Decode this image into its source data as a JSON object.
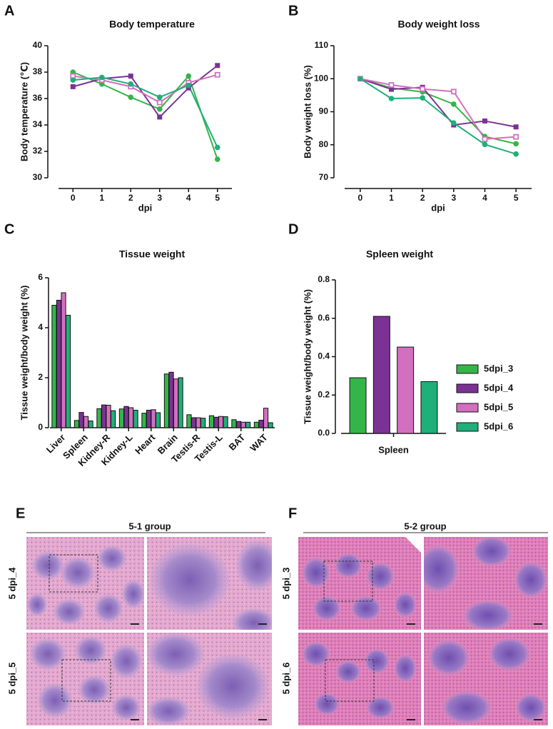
{
  "panel_labels": [
    "A",
    "B",
    "C",
    "D",
    "E",
    "F"
  ],
  "chart_data": [
    {
      "type": "line",
      "title": "Body temperature",
      "x_label": "dpi",
      "y_label": "Body temperature (℃)",
      "x": [
        0,
        1,
        2,
        3,
        4,
        5
      ],
      "xlim": [
        -0.5,
        5.5
      ],
      "xticks": [
        0,
        1,
        2,
        3,
        4,
        5
      ],
      "ylim": [
        30,
        40
      ],
      "yticks": [
        30,
        32,
        34,
        36,
        38,
        40
      ],
      "series": [
        {
          "name": "5dpi_3",
          "color": "#35b549",
          "marker": "circle",
          "values": [
            38.0,
            37.1,
            36.1,
            35.2,
            37.7,
            31.4
          ]
        },
        {
          "name": "5dpi_4",
          "color": "#7b3294",
          "marker": "square",
          "values": [
            36.9,
            37.5,
            37.7,
            34.6,
            36.8,
            38.5
          ]
        },
        {
          "name": "5dpi_5",
          "color": "#d36fbf",
          "marker": "open-square",
          "values": [
            37.7,
            37.4,
            36.9,
            35.7,
            37.2,
            37.8
          ]
        },
        {
          "name": "5dpi_6",
          "color": "#1faf78",
          "marker": "circle",
          "values": [
            37.4,
            37.6,
            37.1,
            36.1,
            37.0,
            32.3
          ]
        }
      ]
    },
    {
      "type": "line",
      "title": "Body weight loss",
      "x_label": "dpi",
      "y_label": "Body weight loss (%)",
      "x": [
        0,
        1,
        2,
        3,
        4,
        5
      ],
      "xlim": [
        -0.5,
        5.5
      ],
      "xticks": [
        0,
        1,
        2,
        3,
        4,
        5
      ],
      "ylim": [
        70,
        110
      ],
      "yticks": [
        70,
        80,
        90,
        100,
        110
      ],
      "series": [
        {
          "name": "5dpi_3",
          "color": "#35b549",
          "marker": "circle",
          "values": [
            100,
            97.2,
            96.0,
            92.3,
            82.5,
            80.3
          ]
        },
        {
          "name": "5dpi_4",
          "color": "#7b3294",
          "marker": "square",
          "values": [
            100,
            96.8,
            97.4,
            86.0,
            87.2,
            85.4
          ]
        },
        {
          "name": "5dpi_5",
          "color": "#d36fbf",
          "marker": "open-square",
          "values": [
            100,
            98.1,
            96.9,
            96.1,
            81.7,
            82.4
          ]
        },
        {
          "name": "5dpi_6",
          "color": "#1faf78",
          "marker": "circle",
          "values": [
            100,
            94.0,
            94.2,
            86.6,
            80.1,
            77.2
          ]
        }
      ]
    },
    {
      "type": "bar",
      "title": "Tissue weight",
      "y_label": "Tissue weight/body weight (%)",
      "categories": [
        "Liver",
        "Spleen",
        "Kidney-R",
        "Kidney-L",
        "Heart",
        "Brain",
        "Testis-R",
        "Testis-L",
        "BAT",
        "WAT"
      ],
      "ylim": [
        0,
        6
      ],
      "yticks": [
        0,
        2,
        4,
        6
      ],
      "series": [
        {
          "name": "5dpi_3",
          "color": "#35b549",
          "values": [
            4.9,
            0.29,
            0.76,
            0.75,
            0.58,
            2.15,
            0.52,
            0.48,
            0.32,
            0.22
          ]
        },
        {
          "name": "5dpi_4",
          "color": "#7b3294",
          "values": [
            5.1,
            0.61,
            0.91,
            0.85,
            0.7,
            2.22,
            0.4,
            0.42,
            0.25,
            0.3
          ]
        },
        {
          "name": "5dpi_5",
          "color": "#d36fbf",
          "values": [
            5.4,
            0.45,
            0.9,
            0.8,
            0.72,
            1.95,
            0.4,
            0.45,
            0.22,
            0.78
          ]
        },
        {
          "name": "5dpi_6",
          "color": "#1faf78",
          "values": [
            4.5,
            0.27,
            0.68,
            0.7,
            0.6,
            2.0,
            0.38,
            0.44,
            0.22,
            0.2
          ]
        }
      ]
    },
    {
      "type": "bar",
      "title": "Spleen weight",
      "y_label": "Tissue weight/body weight (%)",
      "categories": [
        "Spleen"
      ],
      "legend": "right",
      "ylim": [
        0,
        0.8
      ],
      "yticks": [
        {
          "value": 0,
          "label": "0.0"
        },
        0.2,
        0.4,
        0.6,
        0.8
      ],
      "series": [
        {
          "name": "5dpi_3",
          "color": "#35b549",
          "values": [
            0.29
          ]
        },
        {
          "name": "5dpi_4",
          "color": "#7b3294",
          "values": [
            0.61
          ]
        },
        {
          "name": "5dpi_5",
          "color": "#d36fbf",
          "values": [
            0.45
          ]
        },
        {
          "name": "5dpi_6",
          "color": "#1faf78",
          "values": [
            0.27
          ]
        }
      ]
    }
  ],
  "histology": {
    "groups": [
      {
        "title": "5-1 group",
        "rows": [
          "5 dpi_4",
          "5 dpi_5"
        ]
      },
      {
        "title": "5-2 group",
        "rows": [
          "5 dpi_3",
          "5 dpi_6"
        ]
      }
    ]
  }
}
